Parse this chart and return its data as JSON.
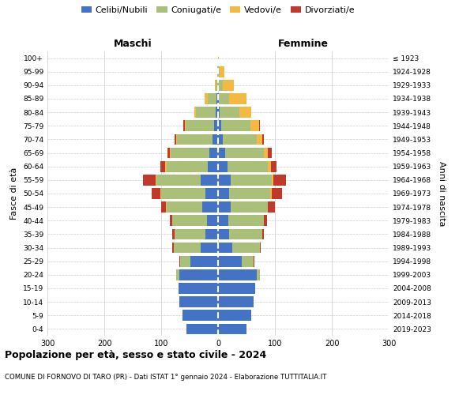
{
  "age_groups": [
    "0-4",
    "5-9",
    "10-14",
    "15-19",
    "20-24",
    "25-29",
    "30-34",
    "35-39",
    "40-44",
    "45-49",
    "50-54",
    "55-59",
    "60-64",
    "65-69",
    "70-74",
    "75-79",
    "80-84",
    "85-89",
    "90-94",
    "95-99",
    "100+"
  ],
  "birth_years": [
    "2019-2023",
    "2014-2018",
    "2009-2013",
    "2004-2008",
    "1999-2003",
    "1994-1998",
    "1989-1993",
    "1984-1988",
    "1979-1983",
    "1974-1978",
    "1969-1973",
    "1964-1968",
    "1959-1963",
    "1954-1958",
    "1949-1953",
    "1944-1948",
    "1939-1943",
    "1934-1938",
    "1929-1933",
    "1924-1928",
    "≤ 1923"
  ],
  "male": {
    "celibi": [
      55,
      62,
      68,
      70,
      68,
      48,
      30,
      22,
      20,
      28,
      22,
      30,
      18,
      15,
      10,
      7,
      4,
      3,
      0,
      0,
      0
    ],
    "coniugati": [
      0,
      0,
      0,
      0,
      5,
      18,
      48,
      55,
      60,
      62,
      78,
      78,
      72,
      68,
      62,
      50,
      35,
      15,
      4,
      2,
      0
    ],
    "vedovi": [
      0,
      0,
      0,
      0,
      0,
      0,
      0,
      0,
      0,
      1,
      2,
      2,
      3,
      2,
      2,
      2,
      3,
      5,
      2,
      0,
      0
    ],
    "divorziati": [
      0,
      0,
      0,
      0,
      0,
      2,
      2,
      3,
      5,
      9,
      14,
      22,
      8,
      4,
      2,
      2,
      0,
      0,
      0,
      0,
      0
    ]
  },
  "female": {
    "nubili": [
      50,
      58,
      62,
      65,
      68,
      42,
      25,
      20,
      18,
      22,
      20,
      22,
      16,
      12,
      8,
      5,
      3,
      2,
      0,
      0,
      0
    ],
    "coniugate": [
      0,
      0,
      0,
      0,
      5,
      20,
      48,
      58,
      62,
      65,
      72,
      72,
      72,
      68,
      60,
      52,
      35,
      18,
      8,
      3,
      0
    ],
    "vedove": [
      0,
      0,
      0,
      0,
      0,
      0,
      0,
      0,
      0,
      1,
      2,
      3,
      5,
      8,
      10,
      15,
      20,
      30,
      20,
      8,
      2
    ],
    "divorziate": [
      0,
      0,
      0,
      0,
      0,
      2,
      2,
      3,
      6,
      12,
      18,
      22,
      10,
      6,
      3,
      2,
      0,
      0,
      0,
      0,
      0
    ]
  },
  "colors": {
    "celibi": "#4472C4",
    "coniugati": "#AABF77",
    "vedovi": "#F4B942",
    "divorziati": "#C0392B"
  },
  "title": "Popolazione per età, sesso e stato civile - 2024",
  "subtitle": "COMUNE DI FORNOVO DI TARO (PR) - Dati ISTAT 1° gennaio 2024 - Elaborazione TUTTITALIA.IT",
  "xlabel_left": "Maschi",
  "xlabel_right": "Femmine",
  "ylabel": "Fasce di età",
  "ylabel_right": "Anni di nascita",
  "xlim": 300,
  "background_color": "#FFFFFF",
  "grid_color": "#CCCCCC"
}
